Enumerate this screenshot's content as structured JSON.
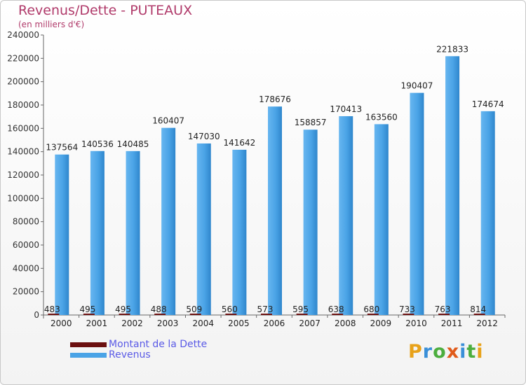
{
  "chart_data": {
    "type": "bar",
    "title": "Revenus/Dette - PUTEAUX",
    "subtitle": "(en milliers d'€)",
    "categories": [
      "2000",
      "2001",
      "2002",
      "2003",
      "2004",
      "2005",
      "2006",
      "2007",
      "2008",
      "2009",
      "2010",
      "2011",
      "2012"
    ],
    "series": [
      {
        "name": "Montant de la Dette",
        "color": "#6b0f0f",
        "values": [
          483,
          495,
          495,
          488,
          509,
          560,
          573,
          595,
          638,
          680,
          733,
          763,
          814
        ]
      },
      {
        "name": "Revenus",
        "color": "#4aa3e6",
        "values": [
          137564,
          140536,
          140485,
          160407,
          147030,
          141642,
          178676,
          158857,
          170413,
          163560,
          190407,
          221833,
          174674
        ]
      }
    ],
    "ylim": [
      0,
      240000
    ],
    "yticks": [
      "0",
      "20000",
      "40000",
      "60000",
      "80000",
      "100000",
      "120000",
      "140000",
      "160000",
      "180000",
      "200000",
      "220000",
      "240000"
    ],
    "grid": false,
    "legend_position": "bottom-left"
  },
  "logo": {
    "letters": [
      "P",
      "r",
      "o",
      "x",
      "i",
      "t",
      "i"
    ],
    "colors": [
      "#e8a21a",
      "#3a8fd8",
      "#4cae3e",
      "#e05a1a",
      "#3a8fd8",
      "#4cae3e",
      "#e8a21a"
    ]
  }
}
